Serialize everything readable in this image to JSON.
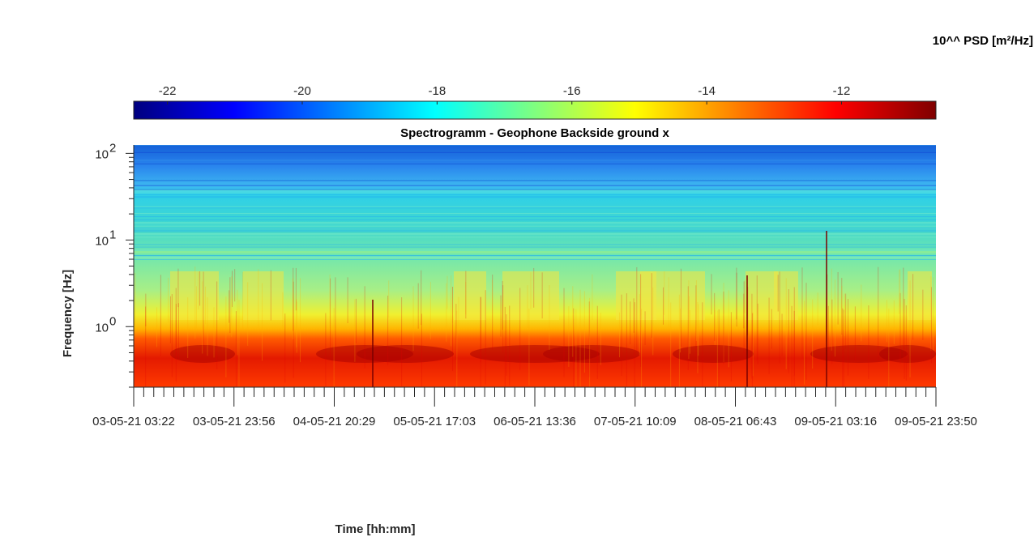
{
  "chart_data": {
    "type": "heatmap",
    "title": "Spectrogramm - Geophone Backside ground x",
    "xlabel": "Time [hh:mm]",
    "ylabel": "Frequency [Hz]",
    "colorbar": {
      "label": "10^^ PSD [m²/Hz]",
      "range": [
        -22.5,
        -10.6
      ],
      "ticks": [
        "-22",
        "-20",
        "-18",
        "-16",
        "-14",
        "-12"
      ],
      "tick_values": [
        -22,
        -20,
        -18,
        -16,
        -14,
        -12
      ],
      "colormap": "jet",
      "placement": "top"
    },
    "y_axis": {
      "scale": "log",
      "range_hz": [
        0.2,
        125
      ],
      "ticks": [
        {
          "value": 1,
          "base": "10",
          "exp": "0"
        },
        {
          "value": 10,
          "base": "10",
          "exp": "1"
        },
        {
          "value": 100,
          "base": "10",
          "exp": "2"
        }
      ]
    },
    "x_axis": {
      "ticks": [
        "03-05-21 03:22",
        "03-05-21 23:56",
        "04-05-21 20:29",
        "05-05-21 17:03",
        "06-05-21 13:36",
        "07-05-21 10:09",
        "08-05-21 06:43",
        "09-05-21 03:16",
        "09-05-21 23:50"
      ]
    },
    "description_bands": [
      {
        "freq_hz": [
          0.2,
          0.8
        ],
        "psd_log10": -12.3
      },
      {
        "freq_hz": [
          0.8,
          1.2
        ],
        "psd_log10": -14.5
      },
      {
        "freq_hz": [
          1.2,
          4
        ],
        "psd_log10": -16.8
      },
      {
        "freq_hz": [
          4,
          30
        ],
        "psd_log10": -17.6
      },
      {
        "freq_hz": [
          30,
          125
        ],
        "psd_log10": -20.5
      }
    ]
  }
}
